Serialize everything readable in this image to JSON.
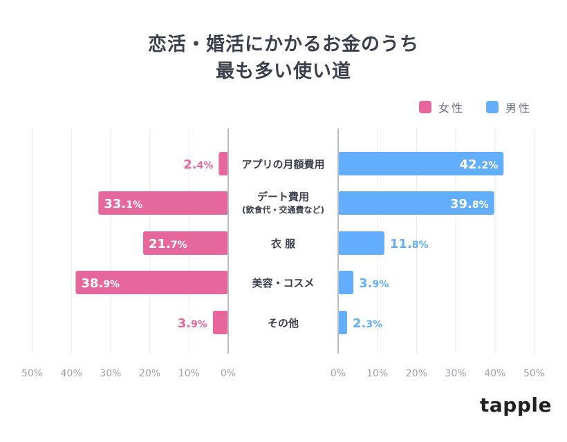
{
  "title_line1": "恋活・婚活にかかるお金のうち",
  "title_line2": "最も多い使い道",
  "legend": [
    {
      "name": "女性",
      "color": "#e6679b"
    },
    {
      "name": "男性",
      "color": "#63aefc"
    }
  ],
  "logo": "tapple",
  "chart_data": {
    "type": "bar",
    "orientation": "horizontal-diverging",
    "categories": [
      [
        "アプリの月額費用"
      ],
      [
        "デート費用",
        "(飲食代・交通費など)"
      ],
      [
        "衣 服"
      ],
      [
        "美容・コスメ"
      ],
      [
        "その他"
      ]
    ],
    "series": [
      {
        "name": "女性",
        "color": "#e6679b",
        "side": "left",
        "values": [
          2.4,
          33.1,
          21.7,
          38.9,
          3.9
        ]
      },
      {
        "name": "男性",
        "color": "#63aefc",
        "side": "right",
        "values": [
          42.2,
          39.8,
          11.8,
          3.9,
          2.3
        ]
      }
    ],
    "value_unit": "%",
    "left_ticks": [
      "50%",
      "40%",
      "30%",
      "20%",
      "10%",
      "0%"
    ],
    "right_ticks": [
      "0%",
      "10%",
      "20%",
      "30%",
      "40%",
      "50%"
    ],
    "xlim": [
      0,
      50
    ],
    "grid": true,
    "legend_position": "top-right"
  }
}
